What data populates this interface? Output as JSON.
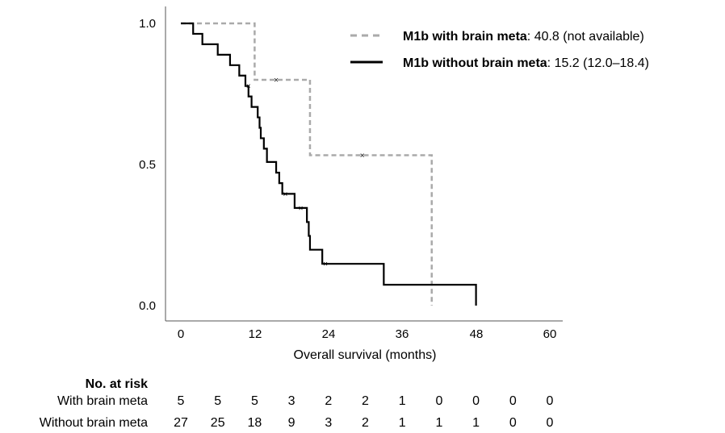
{
  "chart_data": {
    "type": "line",
    "chart_kind": "kaplan-meier step curve",
    "xlabel": "Overall survival (months)",
    "ylabel": "",
    "xlim": [
      0,
      60
    ],
    "ylim": [
      0.0,
      1.0
    ],
    "x_ticks": [
      "0",
      "12",
      "24",
      "36",
      "48",
      "60"
    ],
    "y_ticks": [
      "0.0",
      "0.5",
      "1.0"
    ],
    "grid": false,
    "legend_position": "top-right",
    "series": [
      {
        "name": "M1b with brain meta",
        "legend_bold": "M1b with brain meta",
        "legend_rest": ": 40.8 (not available)",
        "color": "#aaaaaa",
        "style": "dashed",
        "steps": [
          [
            0,
            1.0
          ],
          [
            12,
            0.8
          ],
          [
            21,
            0.533
          ],
          [
            40.8,
            0.0
          ]
        ],
        "end_x": 40.8,
        "censored": [
          [
            15.5,
            0.8
          ],
          [
            29.5,
            0.533
          ]
        ]
      },
      {
        "name": "M1b without brain meta",
        "legend_bold": "M1b without brain meta",
        "legend_rest": ": 15.2 (12.0–18.4)",
        "color": "#000000",
        "style": "solid",
        "steps": [
          [
            0,
            1.0
          ],
          [
            2.0,
            0.963
          ],
          [
            3.5,
            0.926
          ],
          [
            6.0,
            0.889
          ],
          [
            8.0,
            0.852
          ],
          [
            9.5,
            0.815
          ],
          [
            10.5,
            0.778
          ],
          [
            11.0,
            0.741
          ],
          [
            11.5,
            0.704
          ],
          [
            12.5,
            0.667
          ],
          [
            12.8,
            0.63
          ],
          [
            13.0,
            0.593
          ],
          [
            13.5,
            0.556
          ],
          [
            14.0,
            0.509
          ],
          [
            15.5,
            0.471
          ],
          [
            16.0,
            0.434
          ],
          [
            16.5,
            0.396
          ],
          [
            18.5,
            0.346
          ],
          [
            20.5,
            0.296
          ],
          [
            20.8,
            0.247
          ],
          [
            21.0,
            0.198
          ],
          [
            23.0,
            0.148
          ],
          [
            33.0,
            0.074
          ],
          [
            48.0,
            0.0
          ]
        ],
        "end_x": 48.0,
        "censored": [
          [
            11.0,
            0.778
          ],
          [
            17.0,
            0.396
          ],
          [
            19.5,
            0.346
          ],
          [
            23.5,
            0.148
          ]
        ]
      }
    ],
    "risk_table": {
      "title": "No. at risk",
      "rows": [
        {
          "label": "With brain meta",
          "values": [
            "5",
            "5",
            "5",
            "3",
            "2",
            "2",
            "1",
            "0",
            "0",
            "0",
            "0"
          ]
        },
        {
          "label": "Without brain meta",
          "values": [
            "27",
            "25",
            "18",
            "9",
            "3",
            "2",
            "1",
            "1",
            "1",
            "0",
            "0"
          ]
        }
      ]
    }
  }
}
